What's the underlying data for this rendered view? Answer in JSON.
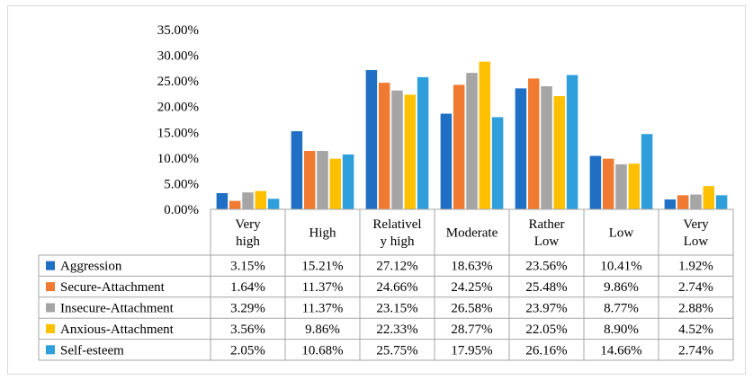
{
  "chart_data": {
    "type": "bar",
    "categories": [
      "Very high",
      "High",
      "Relatively high",
      "Moderate",
      "Rather Low",
      "Low",
      "Very Low"
    ],
    "category_labels": [
      [
        "Very",
        "high"
      ],
      [
        "High"
      ],
      [
        "Relativel",
        "y high"
      ],
      [
        "Moderate"
      ],
      [
        "Rather",
        "Low"
      ],
      [
        "Low"
      ],
      [
        "Very",
        "Low"
      ]
    ],
    "ylim": [
      0,
      35
    ],
    "yticks": [
      0,
      5,
      10,
      15,
      20,
      25,
      30,
      35
    ],
    "ytick_labels": [
      "0.00%",
      "5.00%",
      "10.00%",
      "15.00%",
      "20.00%",
      "25.00%",
      "30.00%",
      "35.00%"
    ],
    "series": [
      {
        "name": "Aggression",
        "color": "#1f6fc4",
        "values": [
          3.15,
          15.21,
          27.12,
          18.63,
          23.56,
          10.41,
          1.92
        ],
        "labels": [
          "3.15%",
          "15.21%",
          "27.12%",
          "18.63%",
          "23.56%",
          "10.41%",
          "1.92%"
        ]
      },
      {
        "name": "Secure-Attachment",
        "color": "#f07a32",
        "values": [
          1.64,
          11.37,
          24.66,
          24.25,
          25.48,
          9.86,
          2.74
        ],
        "labels": [
          "1.64%",
          "11.37%",
          "24.66%",
          "24.25%",
          "25.48%",
          "9.86%",
          "2.74%"
        ]
      },
      {
        "name": "Insecure-Attachment",
        "color": "#a5a5a5",
        "values": [
          3.29,
          11.37,
          23.15,
          26.58,
          23.97,
          8.77,
          2.88
        ],
        "labels": [
          "3.29%",
          "11.37%",
          "23.15%",
          "26.58%",
          "23.97%",
          "8.77%",
          "2.88%"
        ]
      },
      {
        "name": "Anxious-Attachment",
        "color": "#ffc000",
        "values": [
          3.56,
          9.86,
          22.33,
          28.77,
          22.05,
          8.9,
          4.52
        ],
        "labels": [
          "3.56%",
          "9.86%",
          "22.33%",
          "28.77%",
          "22.05%",
          "8.90%",
          "4.52%"
        ]
      },
      {
        "name": "Self-esteem",
        "color": "#2e9fdb",
        "values": [
          2.05,
          10.68,
          25.75,
          17.95,
          26.16,
          14.66,
          2.74
        ],
        "labels": [
          "2.05%",
          "10.68%",
          "25.75%",
          "17.95%",
          "26.16%",
          "14.66%",
          "2.74%"
        ]
      }
    ],
    "gridlines": false,
    "legend": "data-table-left"
  }
}
